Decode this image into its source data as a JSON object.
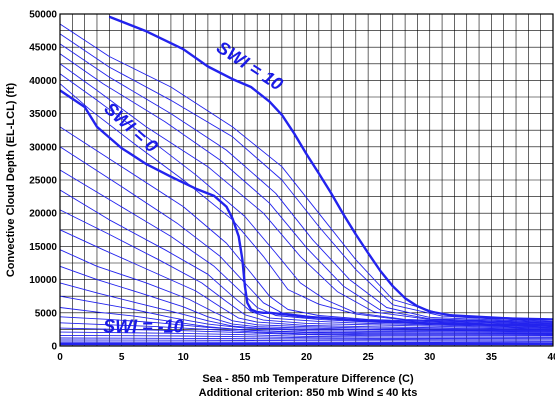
{
  "chart_data": {
    "type": "line",
    "xlabel": "Sea - 850 mb Temperature Difference (C)",
    "xlabel2": "Additional criterion: 850 mb Wind ≤ 40 kts",
    "ylabel": "Convective Cloud Depth (EL-LCL) (ft)",
    "xlim": [
      0,
      40
    ],
    "ylim": [
      0,
      50000
    ],
    "x_ticks": [
      "0",
      "5",
      "10",
      "15",
      "20",
      "25",
      "30",
      "35",
      "40"
    ],
    "y_ticks": [
      "0",
      "5000",
      "10000",
      "15000",
      "20000",
      "25000",
      "30000",
      "35000",
      "40000",
      "45000",
      "50000"
    ],
    "grid": true,
    "colors": {
      "contour": "#2323ee",
      "grid": "#000000"
    },
    "annotations": [
      {
        "text": "SWI = 10",
        "at": [
          12.6,
          44500
        ]
      },
      {
        "text": "SWI = 0",
        "at": [
          3.5,
          35500
        ]
      },
      {
        "text": "SWI = -10",
        "at": [
          3.5,
          2000
        ]
      }
    ],
    "series": [
      {
        "name": "SWI = 10",
        "x": [
          4,
          7,
          10,
          12,
          14,
          15.5,
          17,
          18,
          19,
          20,
          21,
          22,
          23,
          24,
          25,
          26,
          27,
          28,
          29,
          30,
          32,
          35,
          40
        ],
        "values": [
          49600,
          47400,
          44700,
          42100,
          40200,
          39000,
          36800,
          34800,
          32000,
          28900,
          26000,
          23000,
          19800,
          16800,
          14000,
          11300,
          9000,
          7200,
          6000,
          5200,
          4500,
          4200,
          4000
        ],
        "bold": true
      },
      {
        "name": "SWI = 0",
        "x": [
          0,
          2,
          3,
          5,
          7,
          9,
          11,
          12.5,
          13.5,
          14,
          14.5,
          14.8,
          15,
          15.2,
          15.5,
          16,
          16.5,
          17,
          18,
          20,
          25,
          30,
          35,
          40
        ],
        "values": [
          38500,
          36000,
          33000,
          29800,
          27400,
          25500,
          23700,
          22600,
          21000,
          19200,
          16500,
          13000,
          9000,
          6500,
          5500,
          5100,
          5000,
          5000,
          4800,
          4400,
          3800,
          3400,
          3200,
          3100
        ],
        "bold": true
      },
      {
        "name": "SWI = -10",
        "x": [
          0,
          40
        ],
        "values": [
          300,
          300
        ],
        "bold": true
      }
    ],
    "contour_lines": [
      {
        "x": [
          0,
          4,
          9,
          14,
          18,
          21,
          24,
          27,
          31,
          40
        ],
        "values": [
          48500,
          43600,
          39000,
          33000,
          27000,
          20000,
          13000,
          7000,
          4800,
          3900
        ]
      },
      {
        "x": [
          0,
          4,
          9,
          14,
          18,
          21,
          24,
          27,
          31,
          40
        ],
        "values": [
          47000,
          42000,
          37000,
          31500,
          25000,
          18000,
          11500,
          6200,
          4500,
          3700
        ]
      },
      {
        "x": [
          0,
          4,
          9,
          13.5,
          17.5,
          20.5,
          23.5,
          26.5,
          30,
          40
        ],
        "values": [
          45500,
          40500,
          35000,
          29500,
          23000,
          16000,
          10000,
          5800,
          4300,
          3600
        ]
      },
      {
        "x": [
          0,
          3.5,
          8.5,
          13,
          17,
          20,
          23,
          26,
          30,
          40
        ],
        "values": [
          44000,
          39500,
          33800,
          28000,
          21500,
          14800,
          9000,
          5400,
          4100,
          3500
        ]
      },
      {
        "x": [
          0,
          3,
          7,
          12,
          16.5,
          19.5,
          22.5,
          25.5,
          30,
          40
        ],
        "values": [
          42500,
          38500,
          33000,
          27000,
          20000,
          13500,
          8200,
          5100,
          4000,
          3400
        ]
      },
      {
        "x": [
          0,
          3,
          7,
          11,
          15,
          17.5,
          19.5,
          21.5,
          24,
          28,
          40
        ],
        "values": [
          41000,
          37000,
          31500,
          25800,
          19500,
          14000,
          9500,
          7000,
          5000,
          4000,
          3300
        ]
      },
      {
        "x": [
          0,
          2.5,
          6,
          10,
          14,
          16.5,
          18.5,
          21,
          24,
          28,
          40
        ],
        "values": [
          39500,
          35500,
          30500,
          25000,
          19000,
          13500,
          8500,
          6300,
          4800,
          3900,
          3200
        ]
      },
      {
        "x": [
          0,
          5,
          10,
          13.5,
          15.5,
          17,
          18.5,
          21,
          25,
          40
        ],
        "values": [
          33000,
          27000,
          21000,
          15500,
          11000,
          7500,
          5500,
          4600,
          4000,
          3000
        ]
      },
      {
        "x": [
          0,
          5,
          9.5,
          13,
          15,
          16.5,
          18,
          21,
          25,
          40
        ],
        "values": [
          30000,
          24000,
          18500,
          13500,
          9500,
          6500,
          5000,
          4300,
          3800,
          2900
        ]
      },
      {
        "x": [
          0,
          4.5,
          9,
          12.5,
          14.5,
          16,
          17.5,
          21,
          25,
          40
        ],
        "values": [
          26500,
          21500,
          16500,
          12000,
          8500,
          5800,
          4600,
          4000,
          3600,
          2800
        ]
      },
      {
        "x": [
          0,
          4,
          8.5,
          12,
          14,
          15.5,
          17,
          21,
          25,
          40
        ],
        "values": [
          23500,
          19000,
          14500,
          10800,
          7500,
          5200,
          4200,
          3700,
          3400,
          2700
        ]
      },
      {
        "x": [
          0,
          4,
          8,
          11.5,
          13.5,
          15,
          16.5,
          20,
          25,
          40
        ],
        "values": [
          20500,
          16800,
          13000,
          9500,
          6700,
          4700,
          3900,
          3400,
          3200,
          2600
        ]
      },
      {
        "x": [
          0,
          3.5,
          7.5,
          11,
          13,
          14.5,
          16,
          20,
          25,
          40
        ],
        "values": [
          17500,
          14500,
          11200,
          8300,
          5900,
          4200,
          3600,
          3100,
          2900,
          2500
        ]
      },
      {
        "x": [
          0,
          3,
          7,
          10.5,
          12.5,
          14,
          16,
          20,
          25,
          40
        ],
        "values": [
          14500,
          12000,
          9500,
          7000,
          5100,
          3800,
          3200,
          2900,
          2700,
          2400
        ]
      },
      {
        "x": [
          0,
          3,
          6.5,
          10,
          12,
          14,
          16,
          20,
          25,
          40
        ],
        "values": [
          12000,
          10000,
          8000,
          5900,
          4400,
          3300,
          2900,
          2700,
          2500,
          2300
        ]
      },
      {
        "x": [
          0,
          3,
          6,
          9.5,
          12,
          14,
          16,
          20,
          25,
          40
        ],
        "values": [
          9500,
          8000,
          6600,
          5000,
          3800,
          3000,
          2700,
          2500,
          2400,
          2200
        ]
      },
      {
        "x": [
          0,
          3,
          6,
          9,
          12,
          15,
          20,
          25,
          40
        ],
        "values": [
          7500,
          6500,
          5500,
          4300,
          3300,
          2700,
          2300,
          2200,
          2100
        ]
      },
      {
        "x": [
          0,
          3,
          6,
          9,
          12,
          15,
          20,
          25,
          40
        ],
        "values": [
          5800,
          5100,
          4500,
          3700,
          2900,
          2400,
          2100,
          2000,
          1950
        ]
      },
      {
        "x": [
          0,
          4,
          8,
          12,
          16,
          20,
          25,
          40
        ],
        "values": [
          4400,
          4000,
          3500,
          2800,
          2300,
          2000,
          1850,
          1800
        ]
      },
      {
        "x": [
          0,
          4,
          8,
          12,
          16,
          20,
          25,
          40
        ],
        "values": [
          3500,
          3200,
          2900,
          2500,
          2100,
          1800,
          1700,
          1650
        ]
      },
      {
        "x": [
          0,
          5,
          10,
          15,
          20,
          25,
          40
        ],
        "values": [
          2700,
          2500,
          2300,
          2000,
          1700,
          1550,
          1500
        ]
      },
      {
        "x": [
          0,
          5,
          10,
          15,
          20,
          25,
          40
        ],
        "values": [
          2100,
          2000,
          1900,
          1700,
          1450,
          1350,
          1300
        ]
      },
      {
        "x": [
          0,
          5,
          10,
          15,
          20,
          25,
          40
        ],
        "values": [
          1600,
          1550,
          1500,
          1400,
          1250,
          1150,
          1100
        ]
      },
      {
        "x": [
          0,
          10,
          20,
          30,
          40
        ],
        "values": [
          1200,
          1150,
          1050,
          950,
          900
        ]
      },
      {
        "x": [
          0,
          10,
          20,
          30,
          40
        ],
        "values": [
          900,
          870,
          800,
          750,
          700
        ]
      },
      {
        "x": [
          0,
          10,
          20,
          30,
          40
        ],
        "values": [
          600,
          590,
          560,
          530,
          500
        ]
      }
    ]
  }
}
